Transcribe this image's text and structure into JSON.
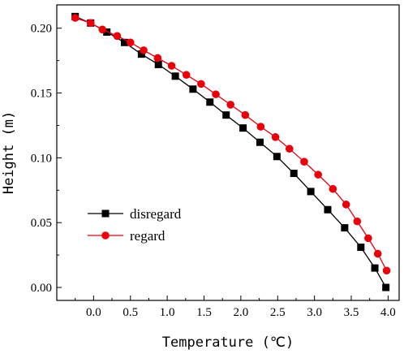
{
  "chart_data": {
    "type": "line",
    "xlabel": "Temperature (℃)",
    "ylabel": "Height (m)",
    "xlim": [
      -0.5,
      4.15
    ],
    "ylim": [
      -0.01,
      0.218
    ],
    "xticks": [
      0.0,
      0.5,
      1.0,
      1.5,
      2.0,
      2.5,
      3.0,
      3.5,
      4.0
    ],
    "xtick_labels": [
      "0.0",
      "0.5",
      "1.0",
      "1.5",
      "2.0",
      "2.5",
      "3.0",
      "3.5",
      "4.0"
    ],
    "yticks": [
      0.0,
      0.05,
      0.1,
      0.15,
      0.2
    ],
    "ytick_labels": [
      "0.00",
      "0.05",
      "0.10",
      "0.15",
      "0.20"
    ],
    "grid": false,
    "legend_position": "center-left",
    "series": [
      {
        "name": "disregard",
        "color": "#000000",
        "marker": "square",
        "x": [
          -0.25,
          -0.04,
          0.18,
          0.42,
          0.65,
          0.88,
          1.11,
          1.35,
          1.58,
          1.8,
          2.03,
          2.26,
          2.49,
          2.72,
          2.95,
          3.18,
          3.41,
          3.63,
          3.82,
          3.97
        ],
        "y": [
          0.209,
          0.204,
          0.197,
          0.189,
          0.18,
          0.172,
          0.163,
          0.153,
          0.143,
          0.133,
          0.123,
          0.112,
          0.101,
          0.088,
          0.074,
          0.06,
          0.046,
          0.031,
          0.015,
          0.0
        ]
      },
      {
        "name": "regard",
        "color": "#e8000b",
        "marker": "circle",
        "x": [
          -0.25,
          -0.04,
          0.12,
          0.32,
          0.5,
          0.68,
          0.87,
          1.06,
          1.26,
          1.46,
          1.66,
          1.86,
          2.06,
          2.27,
          2.47,
          2.66,
          2.86,
          3.05,
          3.25,
          3.43,
          3.58,
          3.73,
          3.86,
          3.98
        ],
        "y": [
          0.208,
          0.204,
          0.199,
          0.194,
          0.189,
          0.183,
          0.177,
          0.171,
          0.164,
          0.157,
          0.149,
          0.141,
          0.133,
          0.124,
          0.116,
          0.107,
          0.097,
          0.087,
          0.076,
          0.064,
          0.051,
          0.038,
          0.026,
          0.013
        ]
      }
    ]
  }
}
